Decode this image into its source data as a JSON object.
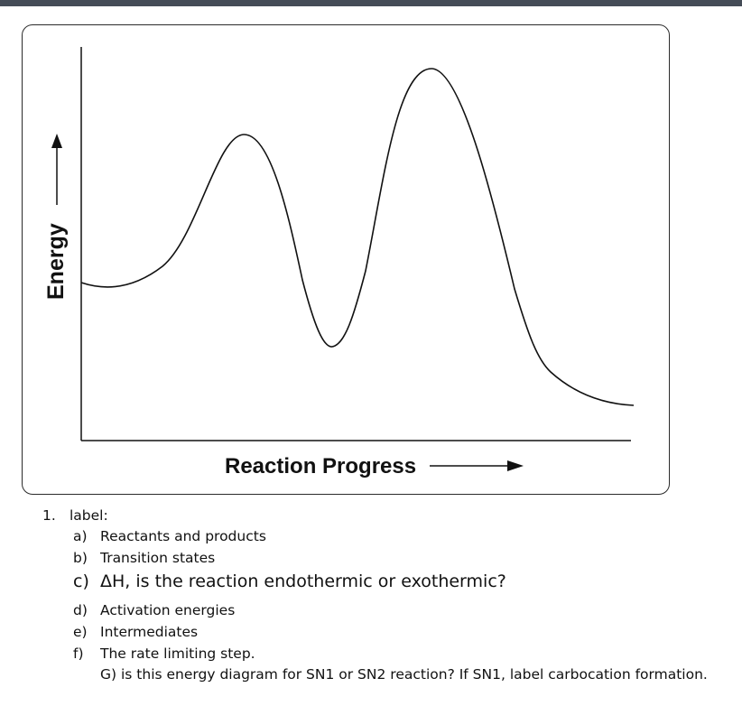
{
  "diagram": {
    "y_axis_label": "Energy",
    "x_axis_label": "Reaction Progress"
  },
  "questions": {
    "number": "1.",
    "heading": "label:",
    "items": [
      {
        "marker": "a)",
        "text": "Reactants and products"
      },
      {
        "marker": "b)",
        "text": "Transition states"
      },
      {
        "marker": "c)",
        "text": "ΔH, is the reaction endothermic or exothermic?"
      },
      {
        "marker": "d)",
        "text": "Activation energies"
      },
      {
        "marker": "e)",
        "text": "Intermediates"
      },
      {
        "marker": "f)",
        "text": "The rate limiting step."
      }
    ],
    "extra": "G) is this energy diagram for SN1 or SN2 reaction? If SN1, label carbocation formation."
  }
}
